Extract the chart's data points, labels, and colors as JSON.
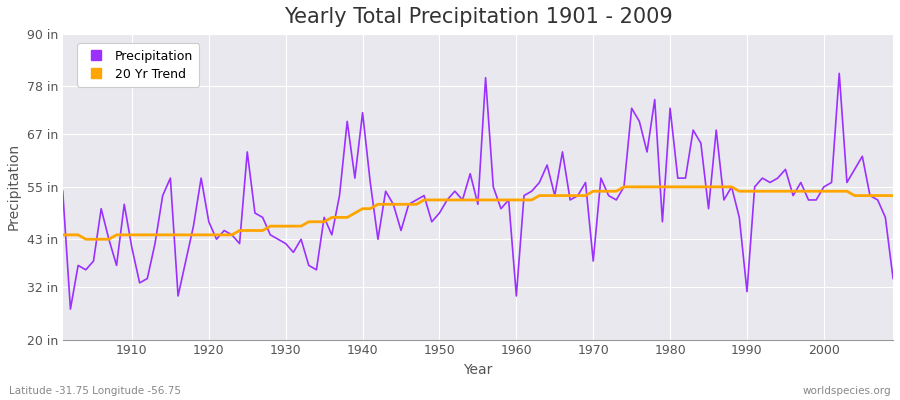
{
  "title": "Yearly Total Precipitation 1901 - 2009",
  "xlabel": "Year",
  "ylabel": "Precipitation",
  "years": [
    1901,
    1902,
    1903,
    1904,
    1905,
    1906,
    1907,
    1908,
    1909,
    1910,
    1911,
    1912,
    1913,
    1914,
    1915,
    1916,
    1917,
    1918,
    1919,
    1920,
    1921,
    1922,
    1923,
    1924,
    1925,
    1926,
    1927,
    1928,
    1929,
    1930,
    1931,
    1932,
    1933,
    1934,
    1935,
    1936,
    1937,
    1938,
    1939,
    1940,
    1941,
    1942,
    1943,
    1944,
    1945,
    1946,
    1947,
    1948,
    1949,
    1950,
    1951,
    1952,
    1953,
    1954,
    1955,
    1956,
    1957,
    1958,
    1959,
    1960,
    1961,
    1962,
    1963,
    1964,
    1965,
    1966,
    1967,
    1968,
    1969,
    1970,
    1971,
    1972,
    1973,
    1974,
    1975,
    1976,
    1977,
    1978,
    1979,
    1980,
    1981,
    1982,
    1983,
    1984,
    1985,
    1986,
    1987,
    1988,
    1989,
    1990,
    1991,
    1992,
    1993,
    1994,
    1995,
    1996,
    1997,
    1998,
    1999,
    2000,
    2001,
    2002,
    2003,
    2004,
    2005,
    2006,
    2007,
    2008,
    2009
  ],
  "precip_in": [
    54,
    27,
    37,
    36,
    38,
    50,
    43,
    37,
    51,
    41,
    33,
    34,
    42,
    53,
    57,
    30,
    38,
    46,
    57,
    47,
    43,
    45,
    44,
    42,
    63,
    49,
    48,
    44,
    43,
    42,
    40,
    43,
    37,
    36,
    48,
    44,
    53,
    70,
    57,
    72,
    56,
    43,
    54,
    51,
    45,
    51,
    52,
    53,
    47,
    49,
    52,
    54,
    52,
    58,
    51,
    80,
    55,
    50,
    52,
    30,
    53,
    54,
    56,
    60,
    53,
    63,
    52,
    53,
    56,
    38,
    57,
    53,
    52,
    55,
    73,
    70,
    63,
    75,
    47,
    73,
    57,
    57,
    68,
    65,
    50,
    68,
    52,
    55,
    48,
    31,
    55,
    57,
    56,
    57,
    59,
    53,
    56,
    52,
    52,
    55,
    56,
    81,
    56,
    59,
    62,
    53,
    52,
    48,
    34
  ],
  "trend_in": [
    44,
    44,
    44,
    43,
    43,
    43,
    43,
    44,
    44,
    44,
    44,
    44,
    44,
    44,
    44,
    44,
    44,
    44,
    44,
    44,
    44,
    44,
    44,
    45,
    45,
    45,
    45,
    46,
    46,
    46,
    46,
    46,
    47,
    47,
    47,
    48,
    48,
    48,
    49,
    50,
    50,
    51,
    51,
    51,
    51,
    51,
    51,
    52,
    52,
    52,
    52,
    52,
    52,
    52,
    52,
    52,
    52,
    52,
    52,
    52,
    52,
    52,
    53,
    53,
    53,
    53,
    53,
    53,
    53,
    54,
    54,
    54,
    54,
    55,
    55,
    55,
    55,
    55,
    55,
    55,
    55,
    55,
    55,
    55,
    55,
    55,
    55,
    55,
    54,
    54,
    54,
    54,
    54,
    54,
    54,
    54,
    54,
    54,
    54,
    54,
    54,
    54,
    54,
    53,
    53,
    53,
    53,
    53,
    53
  ],
  "ylim": [
    20,
    90
  ],
  "yticks": [
    20,
    32,
    43,
    55,
    67,
    78,
    90
  ],
  "ytick_labels": [
    "20 in",
    "32 in",
    "43 in",
    "55 in",
    "67 in",
    "78 in",
    "90 in"
  ],
  "xticks": [
    1910,
    1920,
    1930,
    1940,
    1950,
    1960,
    1970,
    1980,
    1990,
    2000
  ],
  "xlim": [
    1901,
    2009
  ],
  "precip_color": "#9B30FF",
  "trend_color": "#FFA500",
  "fig_bg_color": "#FFFFFF",
  "plot_bg_color": "#E8E8EE",
  "grid_color": "#FFFFFF",
  "title_fontsize": 15,
  "label_fontsize": 10,
  "tick_fontsize": 9,
  "footer_left": "Latitude -31.75 Longitude -56.75",
  "footer_right": "worldspecies.org",
  "legend_labels": [
    "Precipitation",
    "20 Yr Trend"
  ]
}
